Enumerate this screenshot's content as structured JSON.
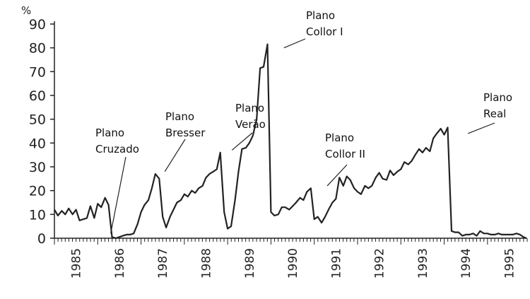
{
  "chart_data": {
    "type": "line",
    "title": "",
    "xlabel": "",
    "ylabel": "%",
    "ylim": [
      0,
      90
    ],
    "xlim": [
      1985.0,
      1995.9
    ],
    "yticks": [
      "0",
      "10",
      "20",
      "30",
      "40",
      "50",
      "60",
      "70",
      "80",
      "90"
    ],
    "xticks": [
      "1985",
      "1986",
      "1987",
      "1988",
      "1989",
      "1990",
      "1991",
      "1992",
      "1993",
      "1994",
      "1995"
    ],
    "grid": false,
    "legend": "none",
    "line_color": "#222222",
    "series": [
      {
        "x": [
          1985.0,
          1985.08,
          1985.17,
          1985.25,
          1985.33,
          1985.42,
          1985.5,
          1985.58,
          1985.67,
          1985.75,
          1985.83,
          1985.92,
          1986.0,
          1986.08,
          1986.17,
          1986.25,
          1986.33,
          1986.42,
          1986.5,
          1986.58,
          1986.67,
          1986.75,
          1986.83,
          1986.92,
          1987.0,
          1987.08,
          1987.17,
          1987.25,
          1987.33,
          1987.42,
          1987.5,
          1987.58,
          1987.67,
          1987.75,
          1987.83,
          1987.92,
          1988.0,
          1988.08,
          1988.17,
          1988.25,
          1988.33,
          1988.42,
          1988.5,
          1988.58,
          1988.67,
          1988.75,
          1988.83,
          1988.92,
          1989.0,
          1989.08,
          1989.17,
          1989.25,
          1989.33,
          1989.42,
          1989.5,
          1989.58,
          1989.67,
          1989.75,
          1989.83,
          1989.92,
          1990.0,
          1990.08,
          1990.17,
          1990.25,
          1990.33,
          1990.42,
          1990.5,
          1990.58,
          1990.67,
          1990.75,
          1990.83,
          1990.92,
          1991.0,
          1991.08,
          1991.17,
          1991.25,
          1991.33,
          1991.42,
          1991.5,
          1991.58,
          1991.67,
          1991.75,
          1991.83,
          1991.92,
          1992.0,
          1992.08,
          1992.17,
          1992.25,
          1992.33,
          1992.42,
          1992.5,
          1992.58,
          1992.67,
          1992.75,
          1992.83,
          1992.92,
          1993.0,
          1993.08,
          1993.17,
          1993.25,
          1993.33,
          1993.42,
          1993.5,
          1993.58,
          1993.67,
          1993.75,
          1993.83,
          1993.92,
          1994.0,
          1994.08,
          1994.17,
          1994.25,
          1994.33,
          1994.42,
          1994.5,
          1994.58,
          1994.67,
          1994.75,
          1994.83,
          1994.92,
          1995.0,
          1995.08,
          1995.17,
          1995.25,
          1995.33,
          1995.42,
          1995.5,
          1995.58,
          1995.67,
          1995.75,
          1995.83,
          1995.9
        ],
        "y": [
          12,
          9.5,
          11.5,
          10,
          12.5,
          10,
          12,
          7.5,
          8,
          8.5,
          13.5,
          8.5,
          14.5,
          13,
          17,
          14,
          0.5,
          0,
          0.5,
          1,
          1.5,
          1.5,
          2,
          6,
          11,
          14,
          16,
          21,
          27,
          25,
          9,
          4.5,
          9,
          12,
          15,
          16,
          18.5,
          17.5,
          20,
          19,
          21,
          22,
          25.5,
          27,
          28,
          29,
          36,
          11,
          4,
          5,
          16,
          28,
          37.5,
          38,
          40,
          43,
          50,
          71.5,
          72,
          81.5,
          11,
          9.5,
          10,
          13,
          13,
          12,
          13.5,
          15,
          17,
          16,
          19.5,
          21,
          8,
          9,
          6.5,
          9,
          12,
          15,
          16.5,
          25.5,
          22,
          26,
          24.5,
          21,
          19.5,
          18.5,
          22,
          21,
          22,
          25.5,
          27.5,
          25,
          24.5,
          28.5,
          26.5,
          28,
          29,
          32,
          31,
          32.5,
          35,
          37.5,
          36,
          38,
          36.5,
          42,
          44,
          46,
          43.5,
          46.5,
          3,
          2.5,
          2.5,
          1,
          1.5,
          1.5,
          2,
          1,
          3,
          2,
          2,
          1.5,
          1.5,
          2,
          1.5,
          1.5,
          1.5,
          1.5,
          2,
          1.5,
          0.5,
          0
        ]
      }
    ],
    "annotations": [
      {
        "lines": [
          "Plano",
          "Cruzado"
        ],
        "target": [
          1986.3,
          2
        ]
      },
      {
        "lines": [
          "Plano",
          "Bresser"
        ],
        "target": [
          1987.55,
          28
        ]
      },
      {
        "lines": [
          "Plano",
          "Verão"
        ],
        "target": [
          1989.1,
          37
        ]
      },
      {
        "lines": [
          "Plano",
          "Collor I"
        ],
        "target": [
          1990.3,
          80
        ]
      },
      {
        "lines": [
          "Plano",
          "Collor II"
        ],
        "target": [
          1991.3,
          22
        ]
      },
      {
        "lines": [
          "Plano",
          "Real"
        ],
        "target": [
          1994.55,
          44
        ]
      }
    ]
  }
}
